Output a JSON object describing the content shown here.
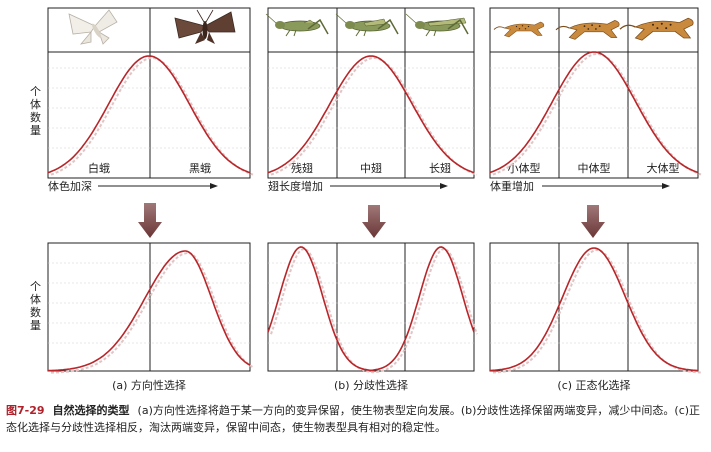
{
  "y_axis_label": [
    "个",
    "体",
    "数",
    "量"
  ],
  "top_panels": [
    {
      "cells": [
        "白蛾",
        "黑蛾"
      ],
      "axis_label": "体色加深",
      "animal_icons": [
        "white-moth",
        "dark-moth"
      ]
    },
    {
      "cells": [
        "残翅",
        "中翅",
        "长翅"
      ],
      "axis_label": "翅长度增加",
      "animal_icons": [
        "grasshopper-vestigial-wing",
        "grasshopper-medium-wing",
        "grasshopper-long-wing"
      ]
    },
    {
      "cells": [
        "小体型",
        "中体型",
        "大体型"
      ],
      "axis_label": "体重增加",
      "animal_icons": [
        "cheetah-small",
        "cheetah-medium",
        "cheetah-large"
      ]
    }
  ],
  "bottom_panels": [
    {
      "label": "(a)  方向性选择",
      "shape": "directional"
    },
    {
      "label": "(b)  分歧性选择",
      "shape": "disruptive"
    },
    {
      "label": "(c)  正态化选择",
      "shape": "stabilizing"
    }
  ],
  "caption": {
    "number": "图7-29",
    "title": "自然选择的类型",
    "text": "(a)方向性选择将趋于某一方向的变异保留，使生物表型定向发展。(b)分歧性选择保留两端变异，减少中间态。(c)正态化选择与分歧性选择相反，淘汰两端变异，保留中间态，使生物表型具有相对的稳定性。"
  },
  "colors": {
    "curve": "#b8262a",
    "curve_shadow": "#e3c4c4",
    "arrow": "#7a4a4a",
    "frame": "#222222",
    "grid": "#c8c8c8",
    "caption_number": "#b0202a"
  }
}
